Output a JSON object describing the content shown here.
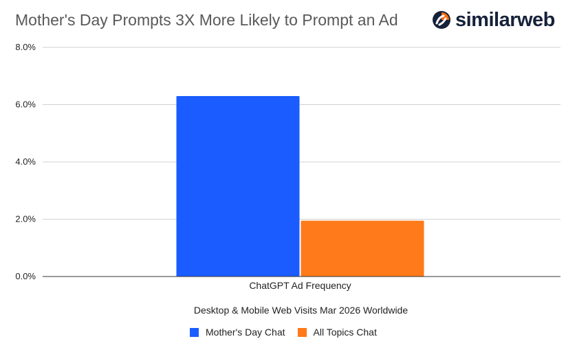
{
  "header": {
    "title": "Mother's Day Prompts 3X More Likely to Prompt an Ad",
    "brand": "similarweb"
  },
  "colors": {
    "mothers_day": "#1a5cff",
    "all_topics": "#ff7a1a",
    "brand_orange": "#ff6a13",
    "brand_dark": "#16213a",
    "grid": "#d0d0d0",
    "axis": "#333333"
  },
  "chart_data": {
    "type": "bar",
    "title": "Mother's Day Prompts 3X More Likely to Prompt an Ad",
    "categories": [
      "ChatGPT Ad Frequency"
    ],
    "series": [
      {
        "name": "Mother's Day Chat",
        "values": [
          6.3
        ]
      },
      {
        "name": "All Topics Chat",
        "values": [
          1.95
        ]
      }
    ],
    "xlabel": "Desktop & Mobile Web Visits Mar 2026 Worldwide",
    "ylabel": "",
    "ylim": [
      0,
      8
    ],
    "yticks": [
      "0.0%",
      "2.0%",
      "4.0%",
      "6.0%",
      "8.0%"
    ],
    "ytick_values": [
      0,
      2,
      4,
      6,
      8
    ],
    "grid": true,
    "legend_position": "bottom"
  }
}
